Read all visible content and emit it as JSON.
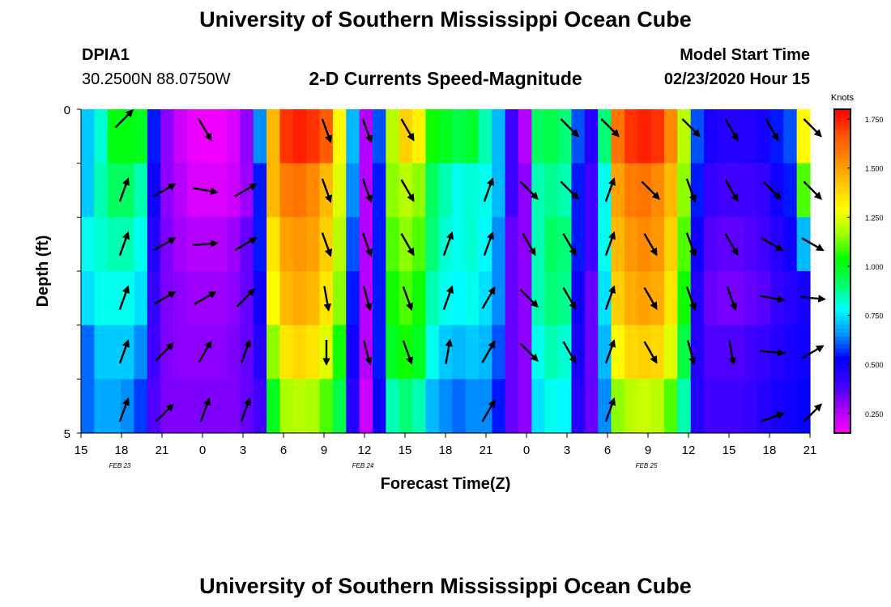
{
  "header": {
    "top_title": "University of Southern Mississippi Ocean Cube",
    "bottom_title": "University of Southern Mississippi Ocean Cube",
    "station_id": "DPIA1",
    "station_coords": "30.2500N 88.0750W",
    "model_start_label": "Model Start Time",
    "model_start_value": "02/23/2020 Hour 15"
  },
  "chart_data": {
    "type": "heatmap",
    "title": "2-D Currents Speed-Magnitude",
    "xlabel": "Forecast Time(Z)",
    "ylabel": "Depth (ft)",
    "ylim": [
      0,
      5
    ],
    "y_ticks": [
      "0",
      "5"
    ],
    "x_tick_labels": [
      "15",
      "18",
      "21",
      "0",
      "3",
      "6",
      "9",
      "12",
      "15",
      "18",
      "21",
      "0",
      "3",
      "6",
      "9",
      "12",
      "15",
      "18",
      "21"
    ],
    "date_labels": [
      {
        "label": "FEB  23",
        "at_tick": 1
      },
      {
        "label": "FEB  24",
        "at_tick": 7
      },
      {
        "label": "FEB  25",
        "at_tick": 14
      }
    ],
    "colorbar": {
      "unit": "Knots",
      "min": 0.15,
      "max": 1.8,
      "tick_values": [
        0.25,
        0.5,
        0.75,
        1.0,
        1.25,
        1.5,
        1.75
      ],
      "tick_labels": [
        "0.250",
        "0.500",
        "0.750",
        "1.000",
        "1.250",
        "1.500",
        "1.750"
      ],
      "colors": [
        "#ff00ff",
        "#a000ff",
        "#3c00ff",
        "#0000ff",
        "#0096ff",
        "#00ffff",
        "#00ff66",
        "#00ff00",
        "#a0ff00",
        "#ffff00",
        "#ffc800",
        "#ff8c00",
        "#ff5000",
        "#ff0000"
      ]
    },
    "forecast_hours": [
      0,
      1,
      2,
      3,
      4,
      5,
      6,
      7,
      8,
      9,
      10,
      11,
      12,
      13,
      14,
      15,
      16,
      17,
      18,
      19,
      20,
      21,
      22,
      23,
      24,
      25,
      26,
      27,
      28,
      29,
      30,
      31,
      32,
      33,
      34,
      35,
      36,
      37,
      38,
      39,
      40,
      41,
      42,
      43,
      44,
      45,
      46,
      47,
      48,
      49,
      50,
      51,
      52,
      53,
      54
    ],
    "depth_rows": [
      "0",
      "1",
      "2",
      "3",
      "4",
      "5"
    ],
    "speed_knots": [
      [
        0.72,
        0.82,
        1.02,
        1.02,
        1.0,
        0.55,
        0.3,
        0.22,
        0.18,
        0.17,
        0.17,
        0.2,
        0.3,
        0.65,
        1.45,
        1.72,
        1.75,
        1.72,
        1.65,
        1.3,
        0.7,
        0.25,
        0.6,
        1.2,
        1.4,
        1.32,
        1.05,
        1.0,
        0.95,
        0.98,
        0.85,
        0.7,
        0.4,
        0.25,
        0.92,
        0.95,
        0.9,
        0.6,
        0.45,
        0.9,
        1.6,
        1.72,
        1.75,
        1.72,
        1.55,
        1.2,
        0.6,
        0.48,
        0.45,
        0.45,
        0.46,
        0.48,
        0.55,
        0.6,
        1.3
      ],
      [
        0.72,
        0.85,
        0.92,
        0.92,
        0.85,
        0.5,
        0.3,
        0.25,
        0.2,
        0.2,
        0.2,
        0.22,
        0.28,
        0.55,
        1.45,
        1.58,
        1.6,
        1.55,
        1.45,
        1.25,
        0.65,
        0.25,
        0.55,
        1.15,
        1.2,
        1.15,
        0.92,
        0.85,
        0.8,
        0.82,
        0.8,
        0.7,
        0.4,
        0.3,
        0.85,
        0.88,
        0.85,
        0.55,
        0.4,
        0.8,
        1.5,
        1.58,
        1.6,
        1.55,
        1.45,
        1.15,
        0.55,
        0.42,
        0.4,
        0.4,
        0.4,
        0.42,
        0.5,
        0.55,
        1.1
      ],
      [
        0.8,
        0.82,
        0.85,
        0.85,
        0.8,
        0.45,
        0.32,
        0.27,
        0.25,
        0.25,
        0.25,
        0.28,
        0.35,
        0.55,
        1.35,
        1.5,
        1.52,
        1.5,
        1.4,
        1.2,
        0.6,
        0.25,
        0.55,
        1.1,
        1.15,
        1.1,
        0.9,
        0.82,
        0.8,
        0.82,
        0.78,
        0.65,
        0.35,
        0.3,
        0.85,
        0.92,
        0.9,
        0.55,
        0.4,
        0.8,
        1.45,
        1.52,
        1.55,
        1.52,
        1.4,
        1.1,
        0.5,
        0.38,
        0.36,
        0.36,
        0.38,
        0.4,
        0.45,
        0.5,
        0.7
      ],
      [
        0.75,
        0.8,
        0.8,
        0.8,
        0.75,
        0.42,
        0.32,
        0.3,
        0.28,
        0.28,
        0.28,
        0.3,
        0.35,
        0.5,
        1.3,
        1.45,
        1.48,
        1.45,
        1.35,
        1.15,
        0.55,
        0.25,
        0.55,
        1.05,
        1.1,
        1.05,
        0.85,
        0.8,
        0.78,
        0.8,
        0.75,
        0.65,
        0.35,
        0.3,
        0.85,
        0.9,
        0.88,
        0.5,
        0.35,
        0.75,
        1.4,
        1.48,
        1.5,
        1.48,
        1.35,
        1.05,
        0.45,
        0.35,
        0.33,
        0.33,
        0.35,
        0.37,
        0.42,
        0.45,
        0.48
      ],
      [
        0.62,
        0.72,
        0.72,
        0.72,
        0.65,
        0.4,
        0.32,
        0.3,
        0.3,
        0.3,
        0.3,
        0.32,
        0.35,
        0.45,
        1.15,
        1.35,
        1.38,
        1.35,
        1.25,
        1.05,
        0.5,
        0.25,
        0.55,
        1.0,
        1.05,
        1.0,
        0.8,
        0.72,
        0.7,
        0.72,
        0.7,
        0.6,
        0.35,
        0.3,
        0.8,
        0.85,
        0.82,
        0.48,
        0.35,
        0.7,
        1.3,
        1.38,
        1.4,
        1.38,
        1.25,
        0.95,
        0.45,
        0.38,
        0.38,
        0.38,
        0.4,
        0.42,
        0.45,
        0.48,
        0.5
      ],
      [
        0.62,
        0.68,
        0.68,
        0.65,
        0.58,
        0.38,
        0.32,
        0.32,
        0.32,
        0.32,
        0.32,
        0.32,
        0.35,
        0.4,
        1.0,
        1.18,
        1.2,
        1.18,
        1.1,
        0.95,
        0.45,
        0.22,
        0.5,
        0.85,
        0.9,
        0.85,
        0.7,
        0.65,
        0.62,
        0.65,
        0.65,
        0.55,
        0.35,
        0.3,
        0.75,
        0.8,
        0.78,
        0.45,
        0.35,
        0.65,
        1.15,
        1.2,
        1.22,
        1.2,
        1.1,
        0.85,
        0.45,
        0.4,
        0.4,
        0.4,
        0.42,
        0.45,
        0.48,
        0.5,
        0.52
      ]
    ],
    "vector_hours": [
      0,
      3,
      6,
      9,
      12,
      15,
      18,
      21,
      24,
      27,
      30,
      33,
      36,
      39,
      42,
      45,
      48,
      51,
      54
    ],
    "vector_directions_deg": [
      [
        null,
        45,
        null,
        150,
        null,
        null,
        160,
        160,
        150,
        null,
        null,
        null,
        135,
        135,
        null,
        135,
        150,
        150,
        135
      ],
      [
        null,
        20,
        60,
        100,
        60,
        null,
        160,
        160,
        150,
        null,
        20,
        135,
        135,
        20,
        135,
        160,
        150,
        135,
        135
      ],
      [
        null,
        20,
        60,
        85,
        60,
        null,
        160,
        160,
        150,
        20,
        20,
        150,
        150,
        20,
        150,
        160,
        150,
        120,
        120
      ],
      [
        null,
        20,
        60,
        60,
        45,
        null,
        170,
        165,
        160,
        20,
        30,
        135,
        150,
        20,
        150,
        160,
        160,
        100,
        95
      ],
      [
        null,
        20,
        45,
        30,
        20,
        null,
        180,
        165,
        160,
        10,
        30,
        135,
        150,
        20,
        150,
        165,
        170,
        95,
        60
      ],
      [
        null,
        20,
        45,
        20,
        20,
        null,
        null,
        null,
        null,
        null,
        30,
        null,
        null,
        20,
        null,
        null,
        null,
        70,
        45
      ]
    ]
  }
}
